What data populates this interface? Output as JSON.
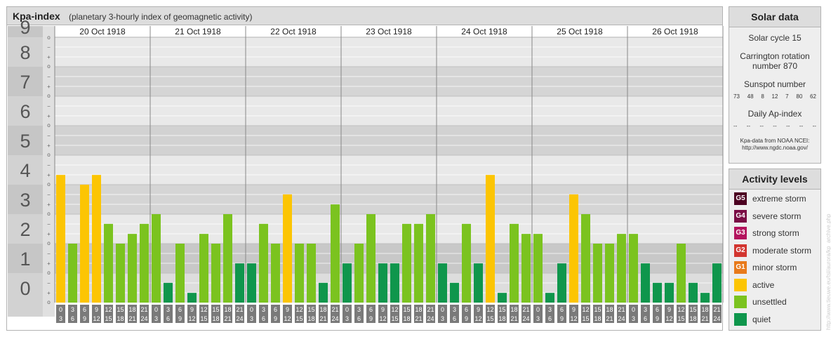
{
  "header": {
    "title": "Kpa-index",
    "subtitle": "(planetary 3-hourly index of geomagnetic activity)"
  },
  "chart_data": {
    "type": "bar",
    "ylim": [
      0,
      9
    ],
    "y_ticks": [
      "0",
      "1",
      "2",
      "3",
      "4",
      "5",
      "6",
      "7",
      "8",
      "9"
    ],
    "minor_tick_labels": [
      "o",
      "+",
      "−"
    ],
    "dates": [
      "20 Oct 1918",
      "21 Oct 1918",
      "22 Oct 1918",
      "23 Oct 1918",
      "24 Oct 1918",
      "25 Oct 1918",
      "26 Oct 1918"
    ],
    "hour_starts": [
      "0",
      "3",
      "6",
      "9",
      "12",
      "15",
      "18",
      "21"
    ],
    "hour_ends": [
      "3",
      "6",
      "9",
      "12",
      "15",
      "18",
      "21",
      "24"
    ],
    "values": [
      [
        4.33,
        2.0,
        4.0,
        4.33,
        2.67,
        2.0,
        2.33,
        2.67
      ],
      [
        3.0,
        0.67,
        2.0,
        0.33,
        2.33,
        2.0,
        3.0,
        1.33
      ],
      [
        1.33,
        2.67,
        2.0,
        3.67,
        2.0,
        2.0,
        0.67,
        3.33
      ],
      [
        1.33,
        2.0,
        3.0,
        1.33,
        1.33,
        2.67,
        2.67,
        3.0
      ],
      [
        1.33,
        0.67,
        2.67,
        1.33,
        4.33,
        0.33,
        2.67,
        2.33
      ],
      [
        2.33,
        0.33,
        1.33,
        3.67,
        3.0,
        2.0,
        2.0,
        2.33
      ],
      [
        2.33,
        1.33,
        0.67,
        0.67,
        2.0,
        0.67,
        0.33,
        1.33
      ]
    ],
    "colors": {
      "quiet": "#0f964c",
      "unsettled": "#7bc31f",
      "active": "#fcc503"
    }
  },
  "solar": {
    "heading": "Solar data",
    "cycle": "Solar cycle 15",
    "carrington_1": "Carrington rotation",
    "carrington_2": "number 870",
    "sunspot_label": "Sunspot number",
    "sunspots": [
      "73",
      "48",
      "8",
      "12",
      "7",
      "80",
      "62"
    ],
    "ap_label": "Daily Ap-index",
    "ap_values": [
      "--",
      "--",
      "--",
      "--",
      "--",
      "--",
      "--"
    ],
    "source_1": "Kpa-data from NOAA NCEI:",
    "source_2": "http://www.ngdc.noaa.gov/"
  },
  "levels": {
    "heading": "Activity levels",
    "items": [
      {
        "code": "G5",
        "label": "extreme storm",
        "color": "#4c0021"
      },
      {
        "code": "G4",
        "label": "severe storm",
        "color": "#7a0c45"
      },
      {
        "code": "G3",
        "label": "strong storm",
        "color": "#b3135d"
      },
      {
        "code": "G2",
        "label": "moderate storm",
        "color": "#d2352f"
      },
      {
        "code": "G1",
        "label": "minor storm",
        "color": "#e87a1b"
      },
      {
        "code": "",
        "label": "active",
        "color": "#fcc503"
      },
      {
        "code": "",
        "label": "unsettled",
        "color": "#7bc31f"
      },
      {
        "code": "",
        "label": "quiet",
        "color": "#0f964c"
      }
    ]
  },
  "watermark": "http://www.tieuwe.eu/tsl/aurora/kp_archive.php"
}
